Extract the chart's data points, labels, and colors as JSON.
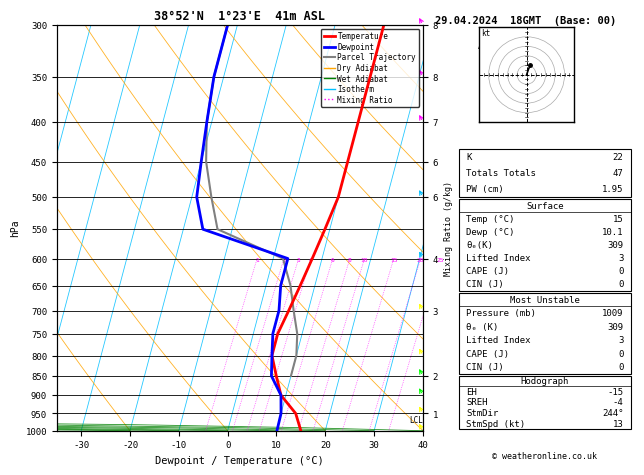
{
  "title_left": "38°52'N  1°23'E  41m ASL",
  "title_right": "29.04.2024  18GMT  (Base: 00)",
  "xlabel": "Dewpoint / Temperature (°C)",
  "pressure_levels": [
    300,
    350,
    400,
    450,
    500,
    550,
    600,
    650,
    700,
    750,
    800,
    850,
    900,
    950,
    1000
  ],
  "xlim": [
    -35,
    40
  ],
  "skew_factor": 22,
  "temp_profile_T": [
    10,
    10,
    10,
    10,
    10,
    9,
    8,
    7,
    6,
    5,
    5,
    7,
    9,
    13,
    15
  ],
  "temp_profile_P": [
    300,
    350,
    400,
    450,
    500,
    550,
    600,
    650,
    700,
    750,
    800,
    850,
    900,
    950,
    1000
  ],
  "dewp_profile_T": [
    -22,
    -22,
    -21,
    -20,
    -19,
    -16,
    3,
    3,
    4,
    4,
    5,
    6,
    9,
    10,
    10.1
  ],
  "dewp_profile_P": [
    300,
    350,
    400,
    450,
    500,
    550,
    600,
    650,
    700,
    750,
    800,
    850,
    900,
    950,
    1000
  ],
  "parcel_profile_T": [
    -22,
    -22,
    -21,
    -19,
    -16,
    -13,
    2,
    5,
    7,
    9,
    10,
    10
  ],
  "parcel_profile_P": [
    300,
    350,
    400,
    450,
    500,
    550,
    600,
    650,
    700,
    750,
    800,
    850
  ],
  "dry_adiabat_thetas": [
    -20,
    0,
    20,
    40,
    60,
    80,
    100,
    120,
    140,
    160
  ],
  "wet_adiabat_temps": [
    -20,
    -10,
    0,
    10,
    20,
    30,
    40
  ],
  "isotherm_temps": [
    -50,
    -40,
    -30,
    -20,
    -10,
    0,
    10,
    20,
    30,
    40,
    50
  ],
  "mixing_ratio_vals": [
    1,
    2,
    3,
    4,
    6,
    8,
    10,
    15,
    20,
    25
  ],
  "mixing_ratio_x_1000": [
    -4.5,
    1.0,
    4.0,
    6.5,
    11.0,
    14.5,
    17.5,
    23.5,
    29.0,
    33.0
  ],
  "lcl_pressure": 960,
  "temp_color": "#ff0000",
  "dewp_color": "#0000ff",
  "parcel_color": "#808080",
  "dry_adiabat_color": "#ffa500",
  "wet_adiabat_color": "#008000",
  "isotherm_color": "#00bfff",
  "mixing_ratio_color": "#ff00ff",
  "km_pressures": [
    300,
    350,
    400,
    450,
    500,
    600,
    700,
    850,
    950
  ],
  "km_labels": [
    8,
    8,
    7,
    6,
    6,
    4,
    3,
    2,
    1
  ],
  "table_k": "22",
  "table_tt": "47",
  "table_pw": "1.95",
  "table_temp": "15",
  "table_dewp": "10.1",
  "table_thetae": "309",
  "table_li": "3",
  "table_cape": "0",
  "table_cin": "0",
  "table_mu_press": "1009",
  "table_mu_thetae": "309",
  "table_mu_li": "3",
  "table_mu_cape": "0",
  "table_mu_cin": "0",
  "table_eh": "-15",
  "table_sreh": "-4",
  "table_stmdir": "244°",
  "table_stmspd": "13",
  "copyright": "© weatheronline.co.uk"
}
